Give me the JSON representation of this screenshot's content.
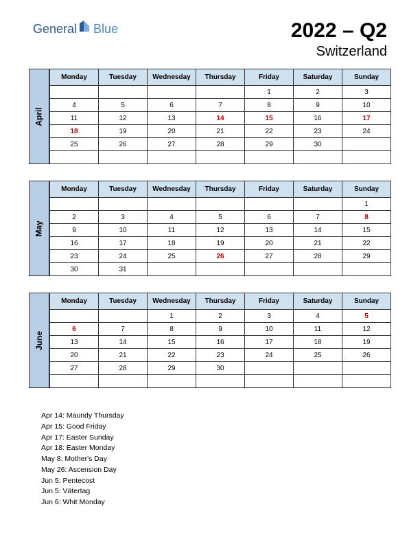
{
  "logo": {
    "part1": "General",
    "part2": "Blue"
  },
  "header": {
    "title": "2022 – Q2",
    "country": "Switzerland"
  },
  "dayHeaders": [
    "Monday",
    "Tuesday",
    "Wednesday",
    "Thursday",
    "Friday",
    "Saturday",
    "Sunday"
  ],
  "styling": {
    "header_bg": "#cfe0ef",
    "month_label_bg": "#b8cee4",
    "border_color": "#333333",
    "holiday_color": "#c00000",
    "text_color": "#000000",
    "body_bg": "#ffffff",
    "logo_general_color": "#2a5a9a",
    "logo_blue_color": "#4a8acb"
  },
  "months": [
    {
      "name": "April",
      "weeks": [
        [
          {
            "v": ""
          },
          {
            "v": ""
          },
          {
            "v": ""
          },
          {
            "v": ""
          },
          {
            "v": "1"
          },
          {
            "v": "2"
          },
          {
            "v": "3"
          }
        ],
        [
          {
            "v": "4"
          },
          {
            "v": "5"
          },
          {
            "v": "6"
          },
          {
            "v": "7"
          },
          {
            "v": "8"
          },
          {
            "v": "9"
          },
          {
            "v": "10"
          }
        ],
        [
          {
            "v": "11"
          },
          {
            "v": "12"
          },
          {
            "v": "13"
          },
          {
            "v": "14",
            "h": true
          },
          {
            "v": "15",
            "h": true
          },
          {
            "v": "16"
          },
          {
            "v": "17",
            "h": true
          }
        ],
        [
          {
            "v": "18",
            "h": true
          },
          {
            "v": "19"
          },
          {
            "v": "20"
          },
          {
            "v": "21"
          },
          {
            "v": "22"
          },
          {
            "v": "23"
          },
          {
            "v": "24"
          }
        ],
        [
          {
            "v": "25"
          },
          {
            "v": "26"
          },
          {
            "v": "27"
          },
          {
            "v": "28"
          },
          {
            "v": "29"
          },
          {
            "v": "30"
          },
          {
            "v": ""
          }
        ],
        [
          {
            "v": ""
          },
          {
            "v": ""
          },
          {
            "v": ""
          },
          {
            "v": ""
          },
          {
            "v": ""
          },
          {
            "v": ""
          },
          {
            "v": ""
          }
        ]
      ]
    },
    {
      "name": "May",
      "weeks": [
        [
          {
            "v": ""
          },
          {
            "v": ""
          },
          {
            "v": ""
          },
          {
            "v": ""
          },
          {
            "v": ""
          },
          {
            "v": ""
          },
          {
            "v": "1"
          }
        ],
        [
          {
            "v": "2"
          },
          {
            "v": "3"
          },
          {
            "v": "4"
          },
          {
            "v": "5"
          },
          {
            "v": "6"
          },
          {
            "v": "7"
          },
          {
            "v": "8",
            "h": true
          }
        ],
        [
          {
            "v": "9"
          },
          {
            "v": "10"
          },
          {
            "v": "11"
          },
          {
            "v": "12"
          },
          {
            "v": "13"
          },
          {
            "v": "14"
          },
          {
            "v": "15"
          }
        ],
        [
          {
            "v": "16"
          },
          {
            "v": "17"
          },
          {
            "v": "18"
          },
          {
            "v": "19"
          },
          {
            "v": "20"
          },
          {
            "v": "21"
          },
          {
            "v": "22"
          }
        ],
        [
          {
            "v": "23"
          },
          {
            "v": "24"
          },
          {
            "v": "25"
          },
          {
            "v": "26",
            "h": true
          },
          {
            "v": "27"
          },
          {
            "v": "28"
          },
          {
            "v": "29"
          }
        ],
        [
          {
            "v": "30"
          },
          {
            "v": "31"
          },
          {
            "v": ""
          },
          {
            "v": ""
          },
          {
            "v": ""
          },
          {
            "v": ""
          },
          {
            "v": ""
          }
        ]
      ]
    },
    {
      "name": "June",
      "weeks": [
        [
          {
            "v": ""
          },
          {
            "v": ""
          },
          {
            "v": "1"
          },
          {
            "v": "2"
          },
          {
            "v": "3"
          },
          {
            "v": "4"
          },
          {
            "v": "5",
            "h": true
          }
        ],
        [
          {
            "v": "6",
            "h": true
          },
          {
            "v": "7"
          },
          {
            "v": "8"
          },
          {
            "v": "9"
          },
          {
            "v": "10"
          },
          {
            "v": "11"
          },
          {
            "v": "12"
          }
        ],
        [
          {
            "v": "13"
          },
          {
            "v": "14"
          },
          {
            "v": "15"
          },
          {
            "v": "16"
          },
          {
            "v": "17"
          },
          {
            "v": "18"
          },
          {
            "v": "19"
          }
        ],
        [
          {
            "v": "20"
          },
          {
            "v": "21"
          },
          {
            "v": "22"
          },
          {
            "v": "23"
          },
          {
            "v": "24"
          },
          {
            "v": "25"
          },
          {
            "v": "26"
          }
        ],
        [
          {
            "v": "27"
          },
          {
            "v": "28"
          },
          {
            "v": "29"
          },
          {
            "v": "30"
          },
          {
            "v": ""
          },
          {
            "v": ""
          },
          {
            "v": ""
          }
        ],
        [
          {
            "v": ""
          },
          {
            "v": ""
          },
          {
            "v": ""
          },
          {
            "v": ""
          },
          {
            "v": ""
          },
          {
            "v": ""
          },
          {
            "v": ""
          }
        ]
      ]
    }
  ],
  "holidays": [
    "Apr 14: Maundy Thursday",
    "Apr 15: Good Friday",
    "Apr 17: Easter Sunday",
    "Apr 18: Easter Monday",
    "May 8: Mother's Day",
    "May 26: Ascension Day",
    "Jun 5: Pentecost",
    " Jun 5: Vätertag",
    "Jun 6: Whit Monday"
  ]
}
